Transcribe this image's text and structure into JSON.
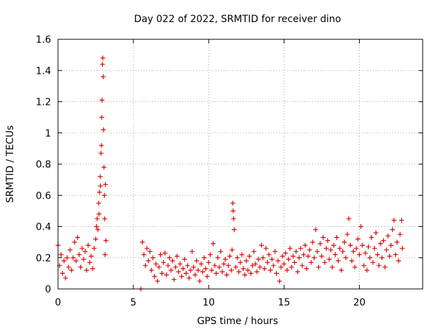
{
  "chart_data": {
    "type": "scatter",
    "title": "Day 022 of 2022, SRMTID for receiver dino",
    "xlabel": "GPS time / hours",
    "ylabel": "SRMTID / TECUs",
    "xlim": [
      0,
      24.2
    ],
    "ylim": [
      0,
      1.6
    ],
    "x_ticks": [
      0,
      5,
      10,
      15,
      20
    ],
    "x_tick_labels": [
      "0",
      "5",
      "10",
      "15",
      "20"
    ],
    "y_ticks": [
      0,
      0.2,
      0.4,
      0.6,
      0.8,
      1.0,
      1.2,
      1.4,
      1.6
    ],
    "y_tick_labels": [
      "0",
      "0.2",
      "0.4",
      "0.6",
      "0.8",
      "1",
      "1.2",
      "1.4",
      "1.6"
    ],
    "grid": true,
    "marker": "+",
    "series_color": "#e00000",
    "series": [
      {
        "name": "SRMTID",
        "points": [
          [
            0.0,
            0.28
          ],
          [
            0.1,
            0.15
          ],
          [
            0.2,
            0.22
          ],
          [
            0.3,
            0.1
          ],
          [
            0.4,
            0.18
          ],
          [
            0.5,
            0.07
          ],
          [
            0.6,
            0.2
          ],
          [
            0.7,
            0.14
          ],
          [
            0.8,
            0.25
          ],
          [
            0.9,
            0.12
          ],
          [
            1.0,
            0.2
          ],
          [
            1.1,
            0.3
          ],
          [
            1.2,
            0.18
          ],
          [
            1.3,
            0.33
          ],
          [
            1.4,
            0.22
          ],
          [
            1.5,
            0.14
          ],
          [
            1.6,
            0.26
          ],
          [
            1.7,
            0.19
          ],
          [
            1.8,
            0.24
          ],
          [
            1.9,
            0.12
          ],
          [
            2.0,
            0.28
          ],
          [
            2.1,
            0.17
          ],
          [
            2.2,
            0.21
          ],
          [
            2.3,
            0.13
          ],
          [
            2.4,
            0.26
          ],
          [
            2.5,
            0.32
          ],
          [
            2.55,
            0.4
          ],
          [
            2.6,
            0.45
          ],
          [
            2.65,
            0.38
          ],
          [
            2.7,
            0.55
          ],
          [
            2.72,
            0.48
          ],
          [
            2.75,
            0.62
          ],
          [
            2.8,
            0.72
          ],
          [
            2.82,
            0.66
          ],
          [
            2.85,
            0.87
          ],
          [
            2.88,
            0.92
          ],
          [
            2.9,
            1.1
          ],
          [
            2.92,
            1.21
          ],
          [
            2.95,
            1.44
          ],
          [
            2.97,
            1.48
          ],
          [
            3.0,
            1.36
          ],
          [
            3.02,
            1.02
          ],
          [
            3.05,
            0.78
          ],
          [
            3.08,
            0.6
          ],
          [
            3.1,
            0.45
          ],
          [
            3.12,
            0.22
          ],
          [
            3.15,
            0.67
          ],
          [
            3.18,
            0.31
          ],
          [
            5.5,
            0.0
          ],
          [
            5.6,
            0.3
          ],
          [
            5.7,
            0.22
          ],
          [
            5.8,
            0.15
          ],
          [
            5.9,
            0.26
          ],
          [
            6.0,
            0.18
          ],
          [
            6.1,
            0.24
          ],
          [
            6.2,
            0.12
          ],
          [
            6.3,
            0.2
          ],
          [
            6.4,
            0.08
          ],
          [
            6.5,
            0.16
          ],
          [
            6.6,
            0.05
          ],
          [
            6.7,
            0.14
          ],
          [
            6.8,
            0.22
          ],
          [
            6.9,
            0.1
          ],
          [
            7.0,
            0.17
          ],
          [
            7.1,
            0.23
          ],
          [
            7.2,
            0.09
          ],
          [
            7.3,
            0.15
          ],
          [
            7.4,
            0.2
          ],
          [
            7.5,
            0.12
          ],
          [
            7.6,
            0.18
          ],
          [
            7.7,
            0.06
          ],
          [
            7.8,
            0.14
          ],
          [
            7.9,
            0.21
          ],
          [
            8.0,
            0.11
          ],
          [
            8.1,
            0.16
          ],
          [
            8.2,
            0.08
          ],
          [
            8.3,
            0.13
          ],
          [
            8.4,
            0.19
          ],
          [
            8.5,
            0.1
          ],
          [
            8.6,
            0.15
          ],
          [
            8.7,
            0.07
          ],
          [
            8.8,
            0.12
          ],
          [
            8.9,
            0.24
          ],
          [
            9.0,
            0.14
          ],
          [
            9.1,
            0.09
          ],
          [
            9.2,
            0.18
          ],
          [
            9.3,
            0.12
          ],
          [
            9.4,
            0.05
          ],
          [
            9.5,
            0.16
          ],
          [
            9.6,
            0.11
          ],
          [
            9.7,
            0.2
          ],
          [
            9.8,
            0.13
          ],
          [
            9.9,
            0.08
          ],
          [
            10.0,
            0.17
          ],
          [
            10.1,
            0.22
          ],
          [
            10.2,
            0.12
          ],
          [
            10.3,
            0.29
          ],
          [
            10.4,
            0.15
          ],
          [
            10.5,
            0.1
          ],
          [
            10.6,
            0.2
          ],
          [
            10.7,
            0.14
          ],
          [
            10.8,
            0.24
          ],
          [
            10.9,
            0.11
          ],
          [
            11.0,
            0.16
          ],
          [
            11.1,
            0.19
          ],
          [
            11.2,
            0.09
          ],
          [
            11.3,
            0.15
          ],
          [
            11.4,
            0.21
          ],
          [
            11.5,
            0.12
          ],
          [
            11.55,
            0.25
          ],
          [
            11.6,
            0.55
          ],
          [
            11.62,
            0.5
          ],
          [
            11.65,
            0.45
          ],
          [
            11.7,
            0.38
          ],
          [
            11.8,
            0.14
          ],
          [
            11.9,
            0.2
          ],
          [
            12.0,
            0.11
          ],
          [
            12.1,
            0.17
          ],
          [
            12.2,
            0.22
          ],
          [
            12.3,
            0.13
          ],
          [
            12.4,
            0.09
          ],
          [
            12.5,
            0.18
          ],
          [
            12.6,
            0.12
          ],
          [
            12.7,
            0.21
          ],
          [
            12.8,
            0.1
          ],
          [
            12.9,
            0.15
          ],
          [
            13.0,
            0.24
          ],
          [
            13.1,
            0.16
          ],
          [
            13.2,
            0.11
          ],
          [
            13.3,
            0.19
          ],
          [
            13.4,
            0.14
          ],
          [
            13.5,
            0.28
          ],
          [
            13.6,
            0.2
          ],
          [
            13.7,
            0.13
          ],
          [
            13.8,
            0.26
          ],
          [
            13.9,
            0.17
          ],
          [
            14.0,
            0.22
          ],
          [
            14.1,
            0.12
          ],
          [
            14.2,
            0.19
          ],
          [
            14.3,
            0.15
          ],
          [
            14.4,
            0.24
          ],
          [
            14.5,
            0.1
          ],
          [
            14.6,
            0.18
          ],
          [
            14.7,
            0.05
          ],
          [
            14.8,
            0.14
          ],
          [
            14.9,
            0.21
          ],
          [
            15.0,
            0.16
          ],
          [
            15.1,
            0.23
          ],
          [
            15.2,
            0.12
          ],
          [
            15.3,
            0.19
          ],
          [
            15.4,
            0.26
          ],
          [
            15.5,
            0.14
          ],
          [
            15.6,
            0.21
          ],
          [
            15.7,
            0.17
          ],
          [
            15.8,
            0.24
          ],
          [
            15.9,
            0.11
          ],
          [
            16.0,
            0.2
          ],
          [
            16.1,
            0.26
          ],
          [
            16.2,
            0.15
          ],
          [
            16.3,
            0.22
          ],
          [
            16.4,
            0.28
          ],
          [
            16.5,
            0.13
          ],
          [
            16.6,
            0.21
          ],
          [
            16.7,
            0.25
          ],
          [
            16.8,
            0.17
          ],
          [
            16.9,
            0.3
          ],
          [
            17.0,
            0.2
          ],
          [
            17.1,
            0.38
          ],
          [
            17.2,
            0.24
          ],
          [
            17.3,
            0.14
          ],
          [
            17.4,
            0.29
          ],
          [
            17.5,
            0.21
          ],
          [
            17.6,
            0.33
          ],
          [
            17.7,
            0.17
          ],
          [
            17.8,
            0.26
          ],
          [
            17.9,
            0.31
          ],
          [
            18.0,
            0.19
          ],
          [
            18.1,
            0.25
          ],
          [
            18.2,
            0.14
          ],
          [
            18.3,
            0.28
          ],
          [
            18.4,
            0.22
          ],
          [
            18.5,
            0.33
          ],
          [
            18.6,
            0.18
          ],
          [
            18.7,
            0.26
          ],
          [
            18.8,
            0.12
          ],
          [
            18.9,
            0.24
          ],
          [
            19.0,
            0.3
          ],
          [
            19.1,
            0.2
          ],
          [
            19.2,
            0.35
          ],
          [
            19.3,
            0.45
          ],
          [
            19.4,
            0.28
          ],
          [
            19.5,
            0.18
          ],
          [
            19.6,
            0.24
          ],
          [
            19.7,
            0.14
          ],
          [
            19.8,
            0.26
          ],
          [
            19.9,
            0.32
          ],
          [
            20.0,
            0.22
          ],
          [
            20.1,
            0.4
          ],
          [
            20.2,
            0.28
          ],
          [
            20.3,
            0.15
          ],
          [
            20.4,
            0.23
          ],
          [
            20.5,
            0.12
          ],
          [
            20.6,
            0.27
          ],
          [
            20.7,
            0.2
          ],
          [
            20.8,
            0.33
          ],
          [
            20.9,
            0.17
          ],
          [
            21.0,
            0.26
          ],
          [
            21.1,
            0.36
          ],
          [
            21.2,
            0.22
          ],
          [
            21.3,
            0.15
          ],
          [
            21.4,
            0.29
          ],
          [
            21.5,
            0.2
          ],
          [
            21.6,
            0.31
          ],
          [
            21.7,
            0.14
          ],
          [
            21.8,
            0.25
          ],
          [
            21.9,
            0.34
          ],
          [
            22.0,
            0.21
          ],
          [
            22.1,
            0.28
          ],
          [
            22.2,
            0.38
          ],
          [
            22.3,
            0.44
          ],
          [
            22.4,
            0.22
          ],
          [
            22.5,
            0.3
          ],
          [
            22.6,
            0.18
          ],
          [
            22.7,
            0.35
          ],
          [
            22.8,
            0.44
          ],
          [
            22.85,
            0.26
          ]
        ]
      }
    ]
  }
}
